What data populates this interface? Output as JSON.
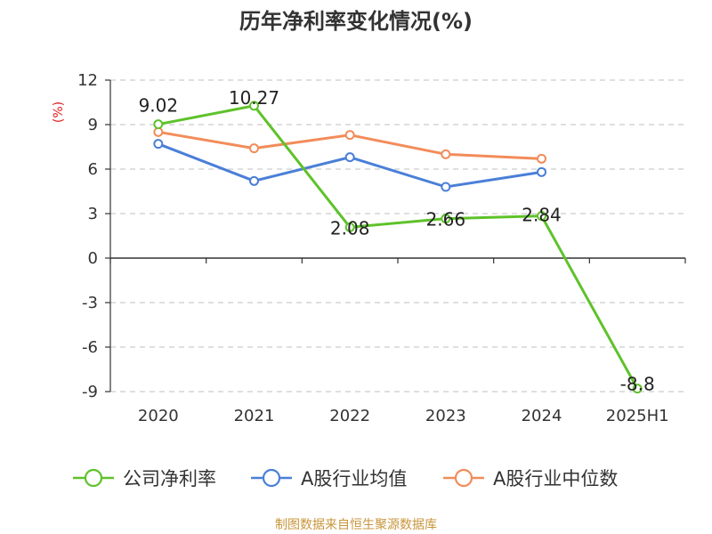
{
  "chart_data": {
    "type": "line",
    "title": "历年净利率变化情况(%)",
    "ylabel": "(%)",
    "xlabel": "",
    "categories": [
      "2020",
      "2021",
      "2022",
      "2023",
      "2024",
      "2025H1"
    ],
    "yticks": [
      "12",
      "9",
      "6",
      "3",
      "0",
      "-3",
      "-6",
      "-9"
    ],
    "ylim": [
      -9,
      12
    ],
    "grid": true,
    "legend_position": "bottom",
    "series": [
      {
        "name": "公司净利率",
        "color": "#5ec22a",
        "values": [
          9.02,
          10.27,
          2.08,
          2.66,
          2.84,
          -8.8
        ],
        "labels": [
          "9.02",
          "10.27",
          "2.08",
          "2.66",
          "2.84",
          "-8.8"
        ]
      },
      {
        "name": "A股行业均值",
        "color": "#4a7fd8",
        "values": [
          7.7,
          5.2,
          6.8,
          4.8,
          5.8,
          null
        ]
      },
      {
        "name": "A股行业中位数",
        "color": "#f28c5a",
        "values": [
          8.5,
          7.4,
          8.3,
          7.0,
          6.7,
          null
        ]
      }
    ]
  },
  "source": "制图数据来自恒生聚源数据库"
}
